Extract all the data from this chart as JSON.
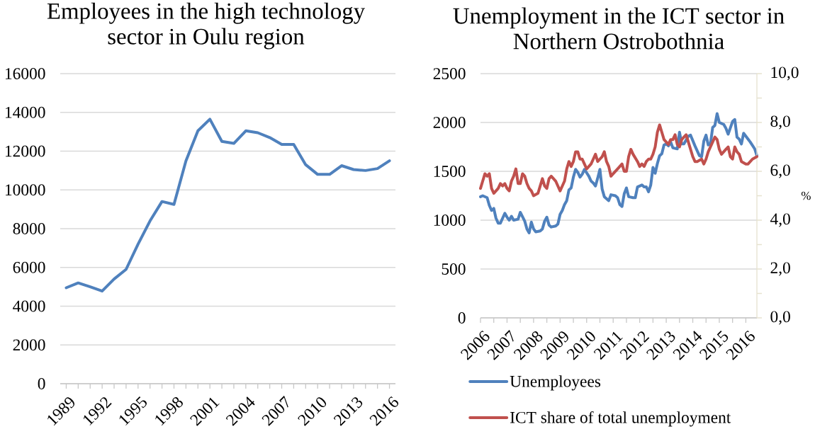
{
  "chart_data": [
    {
      "type": "line",
      "title": "Employees in the high technology sector in Oulu region",
      "categories": [
        "1989",
        null,
        null,
        "1992",
        null,
        null,
        "1995",
        null,
        null,
        "1998",
        null,
        null,
        "2001",
        null,
        null,
        "2004",
        null,
        null,
        "2007",
        null,
        null,
        "2010",
        null,
        null,
        "2013",
        null,
        null,
        "2016"
      ],
      "series": [
        {
          "color": "#4f81bd",
          "values": [
            4950,
            5200,
            5000,
            4780,
            5400,
            5900,
            7200,
            8400,
            9400,
            9250,
            11500,
            13050,
            13650,
            12500,
            12400,
            13050,
            12950,
            12700,
            12350,
            12350,
            11300,
            10800,
            10800,
            11250,
            11050,
            11000,
            11100,
            11500
          ]
        }
      ],
      "ylim": [
        0,
        16000
      ],
      "yticks": [
        0,
        2000,
        4000,
        6000,
        8000,
        10000,
        12000,
        14000,
        16000
      ],
      "grid": "y"
    },
    {
      "type": "line",
      "title": "Unemployment in the ICT sector in Northern Ostrobothnia",
      "y2label": "%",
      "xlim": [
        "2006-01",
        "2016-06"
      ],
      "xticks": [
        {
          "value": "2006-01",
          "label": "2006"
        },
        {
          "value": "2006-07",
          "label": null
        },
        {
          "value": "2007-01",
          "label": "2007"
        },
        {
          "value": "2007-07",
          "label": null
        },
        {
          "value": "2008-01",
          "label": "2008"
        },
        {
          "value": "2008-07",
          "label": null
        },
        {
          "value": "2009-01",
          "label": "2009"
        },
        {
          "value": "2009-07",
          "label": null
        },
        {
          "value": "2010-01",
          "label": "2010"
        },
        {
          "value": "2010-07",
          "label": null
        },
        {
          "value": "2011-01",
          "label": "2011"
        },
        {
          "value": "2011-07",
          "label": null
        },
        {
          "value": "2012-01",
          "label": "2012"
        },
        {
          "value": "2012-07",
          "label": null
        },
        {
          "value": "2013-01",
          "label": "2013"
        },
        {
          "value": "2013-07",
          "label": null
        },
        {
          "value": "2014-01",
          "label": "2014"
        },
        {
          "value": "2014-07",
          "label": null
        },
        {
          "value": "2015-01",
          "label": "2015"
        },
        {
          "value": "2015-07",
          "label": null
        },
        {
          "value": "2016-01",
          "label": "2016"
        }
      ],
      "ylim": [
        0,
        2500
      ],
      "yticks": [
        0,
        500,
        1000,
        1500,
        2000,
        2500
      ],
      "y2lim": [
        0,
        10
      ],
      "y2ticks": [
        {
          "value": 0,
          "label": "0,0"
        },
        {
          "value": 1,
          "label": null
        },
        {
          "value": 2,
          "label": "2,0"
        },
        {
          "value": 3,
          "label": null
        },
        {
          "value": 4,
          "label": "4,0"
        },
        {
          "value": 5,
          "label": null
        },
        {
          "value": 6,
          "label": "6,0"
        },
        {
          "value": 7,
          "label": null
        },
        {
          "value": 8,
          "label": "8,0"
        },
        {
          "value": 9,
          "label": null
        },
        {
          "value": 10,
          "label": "10,0"
        }
      ],
      "grid": "y",
      "legend": "bottom",
      "series": [
        {
          "name": "Unemployees",
          "color": "#4f81bd",
          "x": [
            "2006-01",
            "2006-02",
            "2006-04",
            "2006-05",
            "2006-06",
            "2006-07",
            "2006-08",
            "2006-09",
            "2006-10",
            "2006-11",
            "2006-12",
            "2007-01",
            "2007-02",
            "2007-03",
            "2007-04",
            "2007-06",
            "2007-07",
            "2007-09",
            "2007-10",
            "2007-11",
            "2007-12",
            "2008-01",
            "2008-02",
            "2008-04",
            "2008-05",
            "2008-06",
            "2008-07",
            "2008-08",
            "2008-09",
            "2008-11",
            "2008-12",
            "2009-01",
            "2009-02",
            "2009-03",
            "2009-04",
            "2009-05",
            "2009-06",
            "2009-07",
            "2009-08",
            "2009-09",
            "2009-10",
            "2009-11",
            "2009-12",
            "2010-02",
            "2010-03",
            "2010-04",
            "2010-05",
            "2010-06",
            "2010-07",
            "2010-08",
            "2010-09",
            "2010-11",
            "2010-12",
            "2011-02",
            "2011-03",
            "2011-04",
            "2011-05",
            "2011-06",
            "2011-07",
            "2011-08",
            "2011-10",
            "2011-11",
            "2011-12",
            "2012-02",
            "2012-03",
            "2012-04",
            "2012-05",
            "2012-06",
            "2012-07",
            "2012-08",
            "2012-09",
            "2012-10",
            "2012-11",
            "2012-12",
            "2013-01",
            "2013-02",
            "2013-03",
            "2013-04",
            "2013-06",
            "2013-07",
            "2013-08",
            "2013-09",
            "2013-10",
            "2013-11",
            "2013-12",
            "2014-02",
            "2014-04",
            "2014-05",
            "2014-06",
            "2014-07",
            "2014-08",
            "2014-09",
            "2014-10",
            "2014-11",
            "2014-12",
            "2015-01",
            "2015-03",
            "2015-04",
            "2015-05",
            "2015-07",
            "2015-08",
            "2015-09",
            "2015-10",
            "2015-11",
            "2015-12",
            "2016-02",
            "2016-03",
            "2016-05",
            "2016-06"
          ],
          "values": [
            1240,
            1250,
            1230,
            1150,
            1100,
            1120,
            1020,
            970,
            970,
            1020,
            1070,
            1030,
            1000,
            1040,
            1000,
            1010,
            1080,
            990,
            910,
            870,
            980,
            910,
            880,
            890,
            910,
            990,
            1030,
            950,
            930,
            940,
            960,
            1060,
            1100,
            1160,
            1200,
            1310,
            1330,
            1440,
            1520,
            1490,
            1440,
            1470,
            1520,
            1450,
            1400,
            1380,
            1350,
            1430,
            1520,
            1320,
            1240,
            1200,
            1260,
            1250,
            1230,
            1160,
            1140,
            1270,
            1330,
            1240,
            1230,
            1230,
            1340,
            1360,
            1340,
            1340,
            1290,
            1360,
            1540,
            1480,
            1580,
            1660,
            1680,
            1770,
            1780,
            1760,
            1800,
            1740,
            1730,
            1900,
            1780,
            1780,
            1820,
            1860,
            1870,
            1760,
            1660,
            1650,
            1810,
            1870,
            1770,
            1780,
            1950,
            1970,
            2090,
            2000,
            1980,
            1940,
            1880,
            2010,
            2030,
            1850,
            1830,
            1780,
            1890,
            1830,
            1800,
            1730,
            1660
          ]
        },
        {
          "name": "ICT share of total unemployment",
          "color": "#c0504d",
          "axis": "y2",
          "x": [
            "2006-01",
            "2006-02",
            "2006-03",
            "2006-04",
            "2006-05",
            "2006-06",
            "2006-07",
            "2006-09",
            "2006-10",
            "2006-11",
            "2006-12",
            "2007-01",
            "2007-02",
            "2007-03",
            "2007-04",
            "2007-05",
            "2007-06",
            "2007-07",
            "2007-08",
            "2007-09",
            "2007-10",
            "2007-11",
            "2007-12",
            "2008-01",
            "2008-03",
            "2008-04",
            "2008-05",
            "2008-06",
            "2008-07",
            "2008-08",
            "2008-09",
            "2008-11",
            "2008-12",
            "2009-01",
            "2009-02",
            "2009-03",
            "2009-04",
            "2009-05",
            "2009-06",
            "2009-07",
            "2009-08",
            "2009-09",
            "2009-10",
            "2009-11",
            "2009-12",
            "2010-01",
            "2010-02",
            "2010-03",
            "2010-04",
            "2010-05",
            "2010-06",
            "2010-07",
            "2010-08",
            "2010-09",
            "2010-10",
            "2010-11",
            "2010-12",
            "2011-01",
            "2011-03",
            "2011-04",
            "2011-05",
            "2011-06",
            "2011-07",
            "2011-08",
            "2011-09",
            "2011-10",
            "2011-12",
            "2012-01",
            "2012-02",
            "2012-03",
            "2012-04",
            "2012-05",
            "2012-06",
            "2012-07",
            "2012-08",
            "2012-09",
            "2012-10",
            "2012-11",
            "2012-12",
            "2013-02",
            "2013-03",
            "2013-04",
            "2013-05",
            "2013-06",
            "2013-07",
            "2013-08",
            "2013-09",
            "2013-10",
            "2013-11",
            "2014-01",
            "2014-02",
            "2014-03",
            "2014-05",
            "2014-06",
            "2014-07",
            "2014-08",
            "2014-09",
            "2014-11",
            "2014-12",
            "2015-01",
            "2015-02",
            "2015-03",
            "2015-04",
            "2015-05",
            "2015-06",
            "2015-07",
            "2015-08",
            "2015-09",
            "2015-10",
            "2015-11",
            "2016-01",
            "2016-02",
            "2016-04",
            "2016-06"
          ],
          "values": [
            5.3,
            5.6,
            5.9,
            5.8,
            5.9,
            5.3,
            5.1,
            5.3,
            5.5,
            5.4,
            5.5,
            5.3,
            5.2,
            5.6,
            5.8,
            6.1,
            5.5,
            5.5,
            5.9,
            5.8,
            5.5,
            5.3,
            5.2,
            5.0,
            5.1,
            5.4,
            5.7,
            5.4,
            5.3,
            5.7,
            5.8,
            5.6,
            5.4,
            5.2,
            5.4,
            5.6,
            6.1,
            6.4,
            6.2,
            6.4,
            6.8,
            6.8,
            6.5,
            6.5,
            6.3,
            6.1,
            6.2,
            6.3,
            6.5,
            6.7,
            6.4,
            6.5,
            6.6,
            6.8,
            6.4,
            6.2,
            5.8,
            5.9,
            6.1,
            6.2,
            6.3,
            6.0,
            6.0,
            6.6,
            6.9,
            6.7,
            6.4,
            6.2,
            6.3,
            6.2,
            6.4,
            6.5,
            6.5,
            6.7,
            7.0,
            7.6,
            7.9,
            7.6,
            7.3,
            7.1,
            7.3,
            7.3,
            7.5,
            7.1,
            7.0,
            7.3,
            7.4,
            7.5,
            7.2,
            6.6,
            6.4,
            6.4,
            6.5,
            6.3,
            6.5,
            6.8,
            7.0,
            7.4,
            7.3,
            6.9,
            6.7,
            6.8,
            6.9,
            7.0,
            6.6,
            6.5,
            7.0,
            6.8,
            6.7,
            6.4,
            6.3,
            6.3,
            6.5,
            6.6
          ]
        }
      ]
    }
  ]
}
